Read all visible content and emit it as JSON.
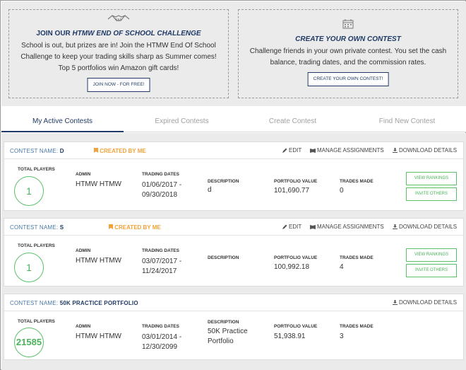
{
  "promos": {
    "left": {
      "title_prefix": "JOIN OUR ",
      "title_emph": "HTMW END OF SCHOOL CHALLENGE",
      "body_lines": [
        "School is out, but prizes are in! Join the HTMW End Of School",
        "Challenge to keep your trading skills sharp as Summer comes!",
        "Top 5 portfolios win Amazon gift cards!"
      ],
      "button": "JOIN NOW - FOR FREE!",
      "icon": "handshake-icon"
    },
    "right": {
      "title": "CREATE YOUR OWN CONTEST",
      "body_lines": [
        "Challenge friends in your own private contest. You set the cash",
        "balance, trading dates, and the commission rates."
      ],
      "button": "CREATE YOUR OWN CONTEST!",
      "icon": "calendar-icon"
    }
  },
  "tabs": [
    {
      "label": "My Active Contests",
      "active": true
    },
    {
      "label": "Expired Contests",
      "active": false
    },
    {
      "label": "Create Contest",
      "active": false
    },
    {
      "label": "Find New Contest",
      "active": false
    }
  ],
  "labels": {
    "contest_name": "CONTEST NAME:",
    "created_by_me": "CREATED BY ME",
    "edit": "EDIT",
    "manage_assignments": "MANAGE ASSIGNMENTS",
    "download_details": "DOWNLOAD DETAILS",
    "total_players": "TOTAL PLAYERS",
    "admin": "ADMIN",
    "trading_dates": "TRADING DATES",
    "description": "DESCRIPTION",
    "portfolio_value": "PORTFOLIO VALUE",
    "trades_made": "TRADES MADE",
    "view_rankings": "VIEW RANKINGS",
    "invite_others": "INVITE OTHERS"
  },
  "contests": [
    {
      "name": "D",
      "created_by_me": true,
      "total_players": "1",
      "admin": "HTMW HTMW",
      "dates_line1": "01/06/2017 -",
      "dates_line2": "09/30/2018",
      "description_line1": "d",
      "description_line2": "",
      "portfolio_value": "101,690.77",
      "trades_made": "0"
    },
    {
      "name": "S",
      "created_by_me": true,
      "total_players": "1",
      "admin": "HTMW HTMW",
      "dates_line1": "03/07/2017 -",
      "dates_line2": "11/24/2017",
      "description_line1": "",
      "description_line2": "",
      "portfolio_value": "100,992.18",
      "trades_made": "4"
    },
    {
      "name": "50K PRACTICE PORTFOLIO",
      "created_by_me": false,
      "total_players": "21585",
      "admin": "HTMW HTMW",
      "dates_line1": "03/01/2014 -",
      "dates_line2": "12/30/2099",
      "description_line1": "50K Practice",
      "description_line2": "Portfolio",
      "portfolio_value": "51,938.91",
      "trades_made": "3"
    }
  ],
  "colors": {
    "navy": "#1f3a66",
    "orange": "#f0a33a",
    "green": "#49b35a",
    "panel_bg": "#ebebeb"
  }
}
